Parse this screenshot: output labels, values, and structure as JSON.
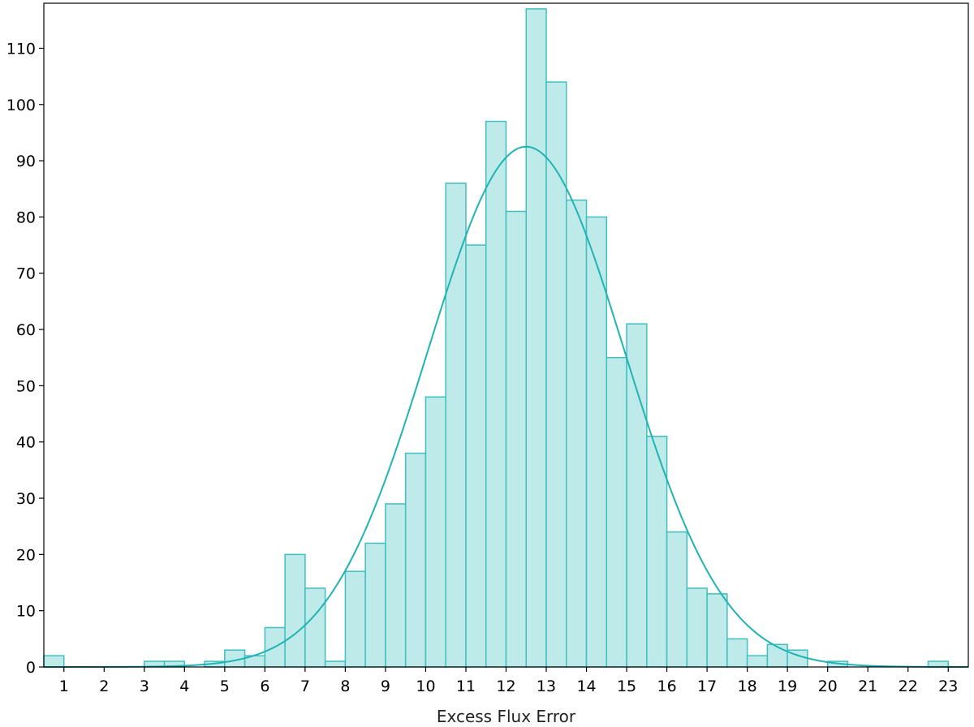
{
  "chart_data": {
    "type": "bar",
    "subtype": "histogram-with-fit",
    "title": "",
    "xlabel": "Excess Flux Error",
    "ylabel": "",
    "xlim": [
      0.5,
      23.5
    ],
    "ylim": [
      0,
      118
    ],
    "x_ticks": [
      1,
      2,
      3,
      4,
      5,
      6,
      7,
      8,
      9,
      10,
      11,
      12,
      13,
      14,
      15,
      16,
      17,
      18,
      19,
      20,
      21,
      22,
      23
    ],
    "y_ticks": [
      0,
      10,
      20,
      30,
      40,
      50,
      60,
      70,
      80,
      90,
      100,
      110
    ],
    "grid": false,
    "legend": "none",
    "bin_width": 0.5,
    "bins": [
      {
        "x": 0.75,
        "count": 2
      },
      {
        "x": 3.25,
        "count": 1
      },
      {
        "x": 3.75,
        "count": 1
      },
      {
        "x": 4.75,
        "count": 1
      },
      {
        "x": 5.25,
        "count": 3
      },
      {
        "x": 5.75,
        "count": 2
      },
      {
        "x": 6.25,
        "count": 7
      },
      {
        "x": 6.75,
        "count": 20
      },
      {
        "x": 7.25,
        "count": 14
      },
      {
        "x": 7.75,
        "count": 1
      },
      {
        "x": 8.25,
        "count": 17
      },
      {
        "x": 8.75,
        "count": 22
      },
      {
        "x": 9.25,
        "count": 29
      },
      {
        "x": 9.75,
        "count": 38
      },
      {
        "x": 10.25,
        "count": 48
      },
      {
        "x": 10.75,
        "count": 86
      },
      {
        "x": 11.25,
        "count": 75
      },
      {
        "x": 11.75,
        "count": 97
      },
      {
        "x": 12.25,
        "count": 81
      },
      {
        "x": 12.75,
        "count": 117
      },
      {
        "x": 13.25,
        "count": 104
      },
      {
        "x": 13.75,
        "count": 83
      },
      {
        "x": 14.25,
        "count": 80
      },
      {
        "x": 14.75,
        "count": 55
      },
      {
        "x": 15.25,
        "count": 61
      },
      {
        "x": 15.75,
        "count": 41
      },
      {
        "x": 16.25,
        "count": 24
      },
      {
        "x": 16.75,
        "count": 14
      },
      {
        "x": 17.25,
        "count": 13
      },
      {
        "x": 17.75,
        "count": 5
      },
      {
        "x": 18.25,
        "count": 2
      },
      {
        "x": 18.75,
        "count": 4
      },
      {
        "x": 19.25,
        "count": 3
      },
      {
        "x": 20.25,
        "count": 1
      },
      {
        "x": 22.75,
        "count": 1
      }
    ],
    "fit": {
      "type": "gaussian",
      "mean": 12.5,
      "std": 2.45,
      "peak": 92.5
    },
    "colors": {
      "bar_fill": "#bfeaea",
      "bar_stroke": "#3fbfbf",
      "fit_line": "#1fb3b3",
      "axis": "#000000"
    }
  }
}
